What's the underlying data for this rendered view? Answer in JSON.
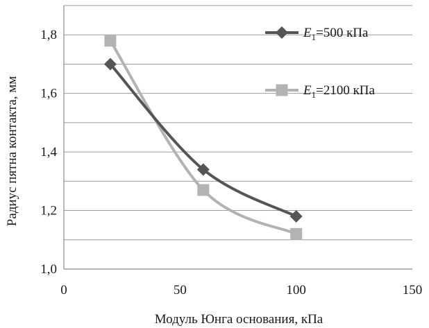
{
  "chart_data": {
    "type": "line",
    "title": "",
    "xlabel": "Модуль Юнга основания, кПа",
    "ylabel": "Радиус пятна контакта, мм",
    "xlim": [
      0,
      150
    ],
    "ylim": [
      1.0,
      1.9
    ],
    "x_ticks": [
      "0",
      "50",
      "100",
      "150"
    ],
    "y_ticks": [
      "1,0",
      "1,2",
      "1,4",
      "1,6",
      "1,8"
    ],
    "x_tick_values": [
      0,
      50,
      100,
      150
    ],
    "y_tick_values": [
      1.0,
      1.2,
      1.4,
      1.6,
      1.8
    ],
    "grid": "horizontal",
    "legend_position": "right",
    "series": [
      {
        "name": "E1=500 кПа",
        "legend_var": "E",
        "legend_sub": "1",
        "legend_rest": "=500 кПа",
        "marker": "diamond",
        "color": "#555555",
        "x": [
          20,
          60,
          100
        ],
        "y": [
          1.7,
          1.34,
          1.18
        ]
      },
      {
        "name": "E1=2100 кПа",
        "legend_var": "E",
        "legend_sub": "1",
        "legend_rest": "=2100 кПа",
        "marker": "square",
        "color": "#b3b3b3",
        "x": [
          20,
          60,
          100
        ],
        "y": [
          1.78,
          1.27,
          1.12
        ]
      }
    ]
  }
}
